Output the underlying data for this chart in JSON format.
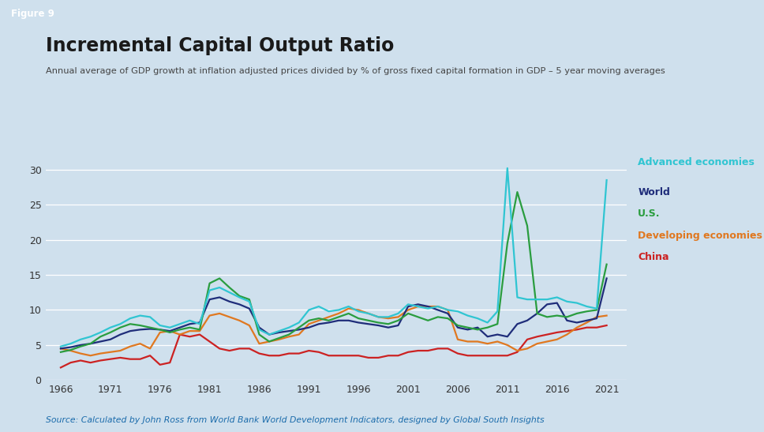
{
  "title": "Incremental Capital Output Ratio",
  "subtitle": "Annual average of GDP growth at inflation adjusted prices divided by % of gross fixed capital formation in GDP – 5 year moving averages",
  "figure_label": "Figure 9",
  "source": "Source: Calculated by John Ross from World Bank World Development Indicators, designed by Global South Insights",
  "background_color": "#cfe0ed",
  "plot_bg_color": "#cfe0ed",
  "figure_label_bg": "#8b1a1a",
  "figure_label_color": "#ffffff",
  "title_color": "#1a1a1a",
  "subtitle_color": "#444444",
  "source_color": "#1a6bab",
  "ylim": [
    0,
    32
  ],
  "yticks": [
    0,
    5,
    10,
    15,
    20,
    25,
    30
  ],
  "xticks": [
    1966,
    1971,
    1976,
    1981,
    1986,
    1991,
    1996,
    2001,
    2006,
    2011,
    2016,
    2021
  ],
  "series": {
    "World": {
      "color": "#1f2d7a",
      "lw": 1.6,
      "years": [
        1966,
        1967,
        1968,
        1969,
        1970,
        1971,
        1972,
        1973,
        1974,
        1975,
        1976,
        1977,
        1978,
        1979,
        1980,
        1981,
        1982,
        1983,
        1984,
        1985,
        1986,
        1987,
        1988,
        1989,
        1990,
        1991,
        1992,
        1993,
        1994,
        1995,
        1996,
        1997,
        1998,
        1999,
        2000,
        2001,
        2002,
        2003,
        2004,
        2005,
        2006,
        2007,
        2008,
        2009,
        2010,
        2011,
        2012,
        2013,
        2014,
        2015,
        2016,
        2017,
        2018,
        2019,
        2020,
        2021
      ],
      "values": [
        4.5,
        4.7,
        5.0,
        5.2,
        5.5,
        5.8,
        6.5,
        7.0,
        7.2,
        7.3,
        7.2,
        7.0,
        7.5,
        8.0,
        8.2,
        11.5,
        11.8,
        11.2,
        10.8,
        10.2,
        7.5,
        6.5,
        6.8,
        7.0,
        7.2,
        7.5,
        8.0,
        8.2,
        8.5,
        8.5,
        8.2,
        8.0,
        7.8,
        7.5,
        7.8,
        10.5,
        10.8,
        10.5,
        10.0,
        9.5,
        7.5,
        7.2,
        7.5,
        6.2,
        6.5,
        6.2,
        8.0,
        8.5,
        9.5,
        10.8,
        11.0,
        8.5,
        8.2,
        8.5,
        8.8,
        14.5
      ]
    },
    "U.S.": {
      "color": "#2a9d3f",
      "lw": 1.6,
      "years": [
        1966,
        1967,
        1968,
        1969,
        1970,
        1971,
        1972,
        1973,
        1974,
        1975,
        1976,
        1977,
        1978,
        1979,
        1980,
        1981,
        1982,
        1983,
        1984,
        1985,
        1986,
        1987,
        1988,
        1989,
        1990,
        1991,
        1992,
        1993,
        1994,
        1995,
        1996,
        1997,
        1998,
        1999,
        2000,
        2001,
        2002,
        2003,
        2004,
        2005,
        2006,
        2007,
        2008,
        2009,
        2010,
        2011,
        2012,
        2013,
        2014,
        2015,
        2016,
        2017,
        2018,
        2019,
        2020,
        2021
      ],
      "values": [
        4.0,
        4.3,
        4.8,
        5.2,
        6.2,
        6.8,
        7.5,
        8.0,
        7.8,
        7.5,
        7.2,
        6.8,
        7.2,
        7.5,
        7.2,
        13.8,
        14.5,
        13.2,
        12.0,
        11.5,
        6.5,
        5.5,
        6.0,
        6.5,
        7.5,
        8.5,
        8.8,
        8.5,
        9.0,
        9.5,
        8.8,
        8.5,
        8.2,
        8.0,
        8.5,
        9.5,
        9.0,
        8.5,
        9.0,
        8.8,
        7.8,
        7.5,
        7.2,
        7.5,
        8.0,
        19.5,
        26.8,
        22.0,
        9.5,
        9.0,
        9.2,
        9.0,
        9.5,
        9.8,
        10.0,
        16.5
      ]
    },
    "Developing economies": {
      "color": "#e07820",
      "lw": 1.6,
      "years": [
        1966,
        1967,
        1968,
        1969,
        1970,
        1971,
        1972,
        1973,
        1974,
        1975,
        1976,
        1977,
        1978,
        1979,
        1980,
        1981,
        1982,
        1983,
        1984,
        1985,
        1986,
        1987,
        1988,
        1989,
        1990,
        1991,
        1992,
        1993,
        1994,
        1995,
        1996,
        1997,
        1998,
        1999,
        2000,
        2001,
        2002,
        2003,
        2004,
        2005,
        2006,
        2007,
        2008,
        2009,
        2010,
        2011,
        2012,
        2013,
        2014,
        2015,
        2016,
        2017,
        2018,
        2019,
        2020,
        2021
      ],
      "values": [
        4.5,
        4.2,
        3.8,
        3.5,
        3.8,
        4.0,
        4.2,
        4.8,
        5.2,
        4.5,
        6.8,
        7.0,
        6.5,
        7.0,
        7.0,
        9.2,
        9.5,
        9.0,
        8.5,
        7.8,
        5.2,
        5.5,
        5.8,
        6.2,
        6.5,
        8.0,
        8.5,
        9.0,
        9.5,
        10.2,
        10.0,
        9.5,
        9.0,
        8.8,
        9.0,
        10.0,
        10.5,
        10.5,
        10.5,
        10.0,
        5.8,
        5.5,
        5.5,
        5.2,
        5.5,
        5.0,
        4.2,
        4.5,
        5.2,
        5.5,
        5.8,
        6.5,
        7.5,
        8.2,
        9.0,
        9.2
      ]
    },
    "China": {
      "color": "#cc2222",
      "lw": 1.6,
      "years": [
        1966,
        1967,
        1968,
        1969,
        1970,
        1971,
        1972,
        1973,
        1974,
        1975,
        1976,
        1977,
        1978,
        1979,
        1980,
        1981,
        1982,
        1983,
        1984,
        1985,
        1986,
        1987,
        1988,
        1989,
        1990,
        1991,
        1992,
        1993,
        1994,
        1995,
        1996,
        1997,
        1998,
        1999,
        2000,
        2001,
        2002,
        2003,
        2004,
        2005,
        2006,
        2007,
        2008,
        2009,
        2010,
        2011,
        2012,
        2013,
        2014,
        2015,
        2016,
        2017,
        2018,
        2019,
        2020,
        2021
      ],
      "values": [
        1.8,
        2.5,
        2.8,
        2.5,
        2.8,
        3.0,
        3.2,
        3.0,
        3.0,
        3.5,
        2.2,
        2.5,
        6.5,
        6.2,
        6.5,
        5.5,
        4.5,
        4.2,
        4.5,
        4.5,
        3.8,
        3.5,
        3.5,
        3.8,
        3.8,
        4.2,
        4.0,
        3.5,
        3.5,
        3.5,
        3.5,
        3.2,
        3.2,
        3.5,
        3.5,
        4.0,
        4.2,
        4.2,
        4.5,
        4.5,
        3.8,
        3.5,
        3.5,
        3.5,
        3.5,
        3.5,
        4.0,
        5.8,
        6.2,
        6.5,
        6.8,
        7.0,
        7.2,
        7.5,
        7.5,
        7.8
      ]
    },
    "Advanced economies": {
      "color": "#30c5d2",
      "lw": 1.6,
      "years": [
        1966,
        1967,
        1968,
        1969,
        1970,
        1971,
        1972,
        1973,
        1974,
        1975,
        1976,
        1977,
        1978,
        1979,
        1980,
        1981,
        1982,
        1983,
        1984,
        1985,
        1986,
        1987,
        1988,
        1989,
        1990,
        1991,
        1992,
        1993,
        1994,
        1995,
        1996,
        1997,
        1998,
        1999,
        2000,
        2001,
        2002,
        2003,
        2004,
        2005,
        2006,
        2007,
        2008,
        2009,
        2010,
        2011,
        2012,
        2013,
        2014,
        2015,
        2016,
        2017,
        2018,
        2019,
        2020,
        2021
      ],
      "values": [
        4.8,
        5.2,
        5.8,
        6.2,
        6.8,
        7.5,
        8.0,
        8.8,
        9.2,
        9.0,
        7.8,
        7.5,
        8.0,
        8.5,
        8.0,
        12.8,
        13.2,
        12.5,
        11.8,
        11.2,
        7.2,
        6.5,
        7.0,
        7.5,
        8.2,
        10.0,
        10.5,
        9.8,
        10.0,
        10.5,
        9.8,
        9.5,
        9.0,
        9.0,
        9.5,
        10.8,
        10.5,
        10.2,
        10.5,
        10.0,
        9.8,
        9.2,
        8.8,
        8.2,
        9.8,
        30.2,
        11.8,
        11.5,
        11.5,
        11.5,
        11.8,
        11.2,
        11.0,
        10.5,
        10.2,
        28.5
      ]
    }
  }
}
